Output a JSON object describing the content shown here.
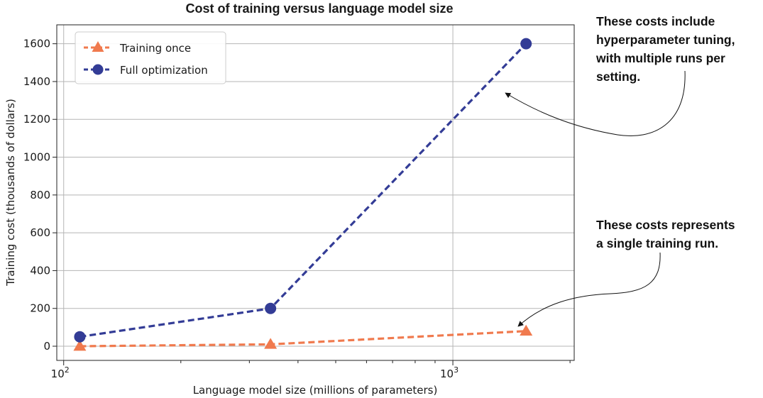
{
  "chart_data": {
    "type": "line",
    "title": "Cost of training versus language model size",
    "xlabel": "Language model size (millions of parameters)",
    "ylabel": "Training cost (thousands of dollars)",
    "x_scale": "log",
    "xlim": [
      96,
      2050
    ],
    "ylim": [
      -75,
      1700
    ],
    "x_ticks": [
      {
        "value": 100,
        "base": "10",
        "exp": "2"
      },
      {
        "value": 1000,
        "base": "10",
        "exp": "3"
      }
    ],
    "y_ticks": [
      {
        "value": 0,
        "label": "0"
      },
      {
        "value": 200,
        "label": "200"
      },
      {
        "value": 400,
        "label": "400"
      },
      {
        "value": 600,
        "label": "600"
      },
      {
        "value": 800,
        "label": "800"
      },
      {
        "value": 1000,
        "label": "1000"
      },
      {
        "value": 1200,
        "label": "1200"
      },
      {
        "value": 1400,
        "label": "1400"
      },
      {
        "value": 1600,
        "label": "1600"
      }
    ],
    "grid": true,
    "legend_position": "top-left",
    "series": [
      {
        "name": "Training once",
        "color": "#f07a4e",
        "marker": "triangle",
        "line_style": "dashed",
        "x": [
          110,
          340,
          1542
        ],
        "y": [
          0,
          10,
          80
        ]
      },
      {
        "name": "Full optimization",
        "color": "#333c96",
        "marker": "circle",
        "line_style": "dashed",
        "x": [
          110,
          340,
          1542
        ],
        "y": [
          50,
          200,
          1600
        ]
      }
    ],
    "annotations": [
      {
        "lines": [
          "These costs include",
          "hyperparameter tuning,",
          "with multiple runs per",
          "setting."
        ]
      },
      {
        "lines": [
          "These costs represents",
          "a single training run."
        ]
      }
    ]
  }
}
